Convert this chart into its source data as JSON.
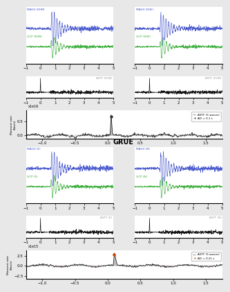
{
  "title_center": "GRUE",
  "fig_bg": "#e8e8e8",
  "panel_bg": "#ffffff",
  "top_left_wave": {
    "blue_label": "MAGH (EHN)",
    "green_label": "GCP (EHN)"
  },
  "top_right_wave": {
    "blue_label": "MAGH (EHE)",
    "green_label": "GCP (EHE)"
  },
  "top_left_xcorr": {
    "label": "ASTF (EHN)"
  },
  "top_right_xcorr": {
    "label": "ASTF (EHN)"
  },
  "top_moment": {
    "scale_label": "x1e16",
    "xlim": [
      -1.25,
      1.75
    ],
    "yticks": [
      0.0,
      0.5
    ],
    "legend1": "ASTF (5 waves)",
    "legend2": "AD = 0.1 s"
  },
  "bot_left_wave": {
    "blue_label": "MAGH (E)",
    "green_label": "GCP (E)"
  },
  "bot_right_wave": {
    "blue_label": "MAGH (N)",
    "green_label": "GCP (N)"
  },
  "bot_left_xcorr": {
    "label": "ASTF (E)"
  },
  "bot_right_xcorr": {
    "label": "ASTF (N)"
  },
  "bot_moment": {
    "scale_label": "x1e15",
    "xlim": [
      -1.25,
      1.75
    ],
    "yticks": [
      -2.5,
      0.0,
      2.5
    ],
    "legend1": "ASTF (5 waves)",
    "legend2": "AD = 0.21 s"
  },
  "blue_color": "#4455cc",
  "green_color": "#33aa33",
  "dark_color": "#111111",
  "gray_color": "#999999",
  "wave_xlim": [
    -1,
    5
  ],
  "wave_xticks": [
    -1,
    0,
    1,
    2,
    3,
    4,
    5
  ]
}
